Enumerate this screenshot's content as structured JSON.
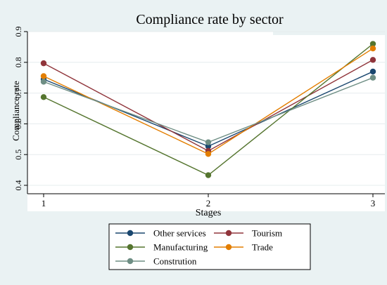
{
  "chart_data": {
    "type": "line",
    "title": "Compliance rate by sector",
    "xlabel": "Stages",
    "ylabel": "Compliance rate",
    "x": [
      1,
      2,
      3
    ],
    "x_ticks": [
      "1",
      "2",
      "3"
    ],
    "ylim": [
      0.4,
      0.9
    ],
    "y_ticks": [
      "0.4",
      "0.5",
      "0.6",
      "0.7",
      "0.8",
      "0.9"
    ],
    "grid": true,
    "legend_position": "bottom",
    "series": [
      {
        "name": "Other services",
        "color": "#1a476f",
        "values": [
          0.745,
          0.527,
          0.77
        ]
      },
      {
        "name": "Tourism",
        "color": "#90353b",
        "values": [
          0.797,
          0.512,
          0.808
        ]
      },
      {
        "name": "Manufacturing",
        "color": "#55752f",
        "values": [
          0.687,
          0.433,
          0.86
        ]
      },
      {
        "name": "Trade",
        "color": "#e37e00",
        "values": [
          0.755,
          0.502,
          0.845
        ]
      },
      {
        "name": "Constrution",
        "color": "#6e8e84",
        "values": [
          0.737,
          0.54,
          0.75
        ]
      }
    ]
  }
}
